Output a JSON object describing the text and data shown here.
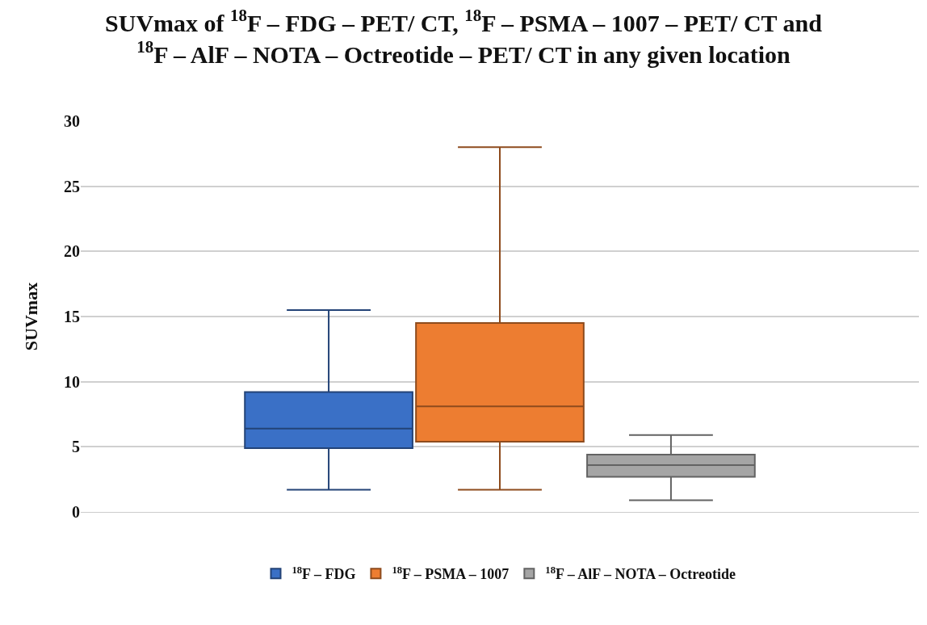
{
  "chart_data": {
    "type": "box",
    "title": "SUVmax of $^{18}$F – FDG – PET/ CT, $^{18}$F – PSMA – 1007 – PET/ CT and\n$^{18}$F – AlF – NOTA – Octreotide – PET/ CT in any given location",
    "ylabel": "SUVmax",
    "categories": [
      null
    ],
    "ylim": [
      0,
      30
    ],
    "yticks": [
      0,
      5,
      10,
      15,
      20,
      25,
      30
    ],
    "grid": "y",
    "legend": "bottom",
    "series": [
      {
        "name": "$^{18}$F – FDG",
        "color": "#3a70c6",
        "boxes": [
          {
            "low": 1.7,
            "q1": 4.9,
            "median": 6.4,
            "q3": 9.2,
            "high": 15.5
          }
        ]
      },
      {
        "name": "$^{18}$F – PSMA – 1007",
        "color": "#ed7d31",
        "boxes": [
          {
            "low": 1.7,
            "q1": 5.4,
            "median": 8.1,
            "q3": 14.5,
            "high": 28
          }
        ]
      },
      {
        "name": "$^{18}$F – AlF – NOTA – Octreotide",
        "color": "#a5a5a5",
        "boxes": [
          {
            "low": 0.9,
            "q1": 2.7,
            "median": 3.6,
            "q3": 4.4,
            "high": 5.9
          }
        ]
      }
    ]
  }
}
